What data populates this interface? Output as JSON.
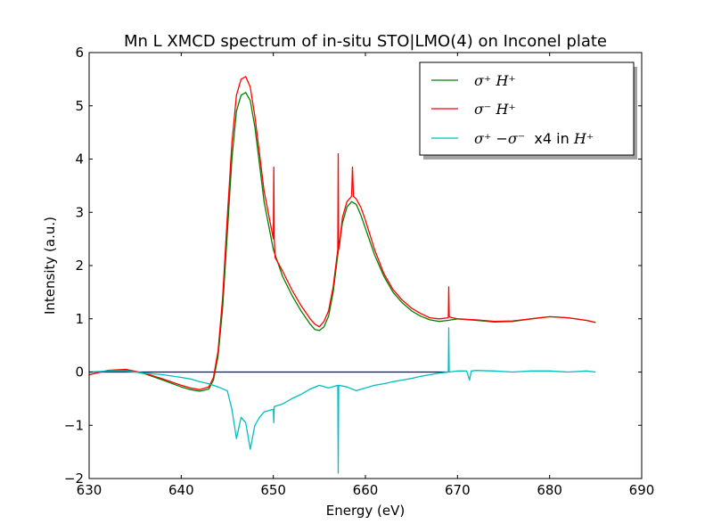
{
  "chart_data": {
    "type": "line",
    "title": "Mn L XMCD spectrum of in-situ STO|LMO(4) on Inconel plate",
    "xlabel": "Energy (eV)",
    "ylabel": "Intensity (a.u.)",
    "xlim": [
      630,
      690
    ],
    "ylim": [
      -2,
      6
    ],
    "xticks": [
      630,
      640,
      650,
      660,
      670,
      680,
      690
    ],
    "yticks": [
      -2,
      -1,
      0,
      1,
      2,
      3,
      4,
      5,
      6
    ],
    "xtick_labels": [
      "630",
      "640",
      "650",
      "660",
      "670",
      "680",
      "690"
    ],
    "ytick_labels": [
      "−2",
      "−1",
      "0",
      "1",
      "2",
      "3",
      "4",
      "5",
      "6"
    ],
    "grid": false,
    "legend_position": "top-right",
    "baseline": {
      "y": 0,
      "x_range": [
        630,
        669
      ],
      "color": "#0000bf"
    },
    "series": [
      {
        "name": "σ⁺ H⁺",
        "legend_parts": {
          "math": "σ⁺ H⁺",
          "extra": ""
        },
        "color": "#008000",
        "x": [
          630,
          632,
          634,
          636,
          638,
          640,
          641,
          642,
          643,
          643.5,
          644,
          644.5,
          645,
          645.5,
          646,
          646.5,
          647,
          647.5,
          648,
          648.5,
          649,
          650,
          651,
          652,
          653,
          654,
          654.5,
          655,
          655.5,
          656,
          656.5,
          657,
          657.5,
          658,
          658.5,
          659,
          659.5,
          660,
          661,
          662,
          663,
          664,
          665,
          666,
          667,
          668,
          669,
          670,
          672,
          674,
          676,
          678,
          680,
          682,
          684,
          685
        ],
        "y": [
          -0.05,
          0.03,
          0.04,
          -0.03,
          -0.15,
          -0.28,
          -0.33,
          -0.36,
          -0.32,
          -0.15,
          0.3,
          1.2,
          2.6,
          4.0,
          4.9,
          5.2,
          5.25,
          5.1,
          4.6,
          3.9,
          3.2,
          2.3,
          1.8,
          1.45,
          1.15,
          0.9,
          0.8,
          0.78,
          0.85,
          1.05,
          1.5,
          2.2,
          2.8,
          3.1,
          3.2,
          3.15,
          2.95,
          2.7,
          2.2,
          1.8,
          1.5,
          1.3,
          1.15,
          1.05,
          0.98,
          0.95,
          0.97,
          1.0,
          0.97,
          0.94,
          0.95,
          1.0,
          1.04,
          1.02,
          0.97,
          0.93
        ]
      },
      {
        "name": "σ⁻ H⁺",
        "legend_parts": {
          "math": "σ⁻  H⁺",
          "extra": ""
        },
        "color": "#ff0000",
        "x": [
          630,
          632,
          634,
          636,
          638,
          640,
          641,
          642,
          643,
          643.5,
          644,
          644.5,
          645,
          645.5,
          646,
          646.5,
          647,
          647.5,
          648,
          648.5,
          649,
          650,
          650.05,
          650.1,
          650.2,
          651,
          652,
          653,
          654,
          654.5,
          655,
          655.5,
          656,
          656.5,
          657,
          657.05,
          657.1,
          657.2,
          657.5,
          658,
          658.5,
          658.6,
          658.7,
          659,
          659.5,
          660,
          661,
          662,
          663,
          664,
          665,
          666,
          667,
          668,
          669,
          669.05,
          669.1,
          669.2,
          670,
          672,
          674,
          676,
          678,
          680,
          682,
          684,
          685
        ],
        "y": [
          -0.05,
          0.03,
          0.05,
          -0.02,
          -0.13,
          -0.25,
          -0.3,
          -0.33,
          -0.28,
          -0.1,
          0.4,
          1.4,
          2.9,
          4.3,
          5.2,
          5.5,
          5.55,
          5.35,
          4.8,
          4.1,
          3.4,
          2.5,
          3.85,
          2.5,
          2.15,
          1.9,
          1.55,
          1.25,
          1.0,
          0.9,
          0.85,
          0.95,
          1.15,
          1.6,
          2.3,
          4.1,
          2.3,
          2.4,
          2.9,
          3.2,
          3.3,
          3.85,
          3.3,
          3.25,
          3.1,
          2.85,
          2.3,
          1.85,
          1.55,
          1.35,
          1.2,
          1.1,
          1.02,
          1.0,
          1.02,
          1.6,
          1.05,
          1.03,
          1.0,
          0.98,
          0.95,
          0.96,
          1.0,
          1.04,
          1.02,
          0.97,
          0.93
        ]
      },
      {
        "name": "σ⁺−σ⁻ x4 in H⁺",
        "legend_parts": {
          "math": "σ⁺ −σ⁻",
          "extra": "  x4 in ",
          "math2": "H⁺"
        },
        "color": "#00bfbf",
        "x": [
          630,
          632,
          634,
          636,
          638,
          640,
          641,
          642,
          643,
          644,
          645,
          645.5,
          646,
          646.5,
          647,
          647.5,
          648,
          648.5,
          649,
          650,
          650.05,
          650.1,
          651,
          652,
          653,
          654,
          655,
          656,
          657,
          657.05,
          657.1,
          658,
          659,
          660,
          661,
          662,
          663,
          664,
          665,
          666,
          667,
          668,
          669,
          669.05,
          669.1,
          670,
          671,
          671.3,
          671.5,
          672,
          674,
          676,
          678,
          680,
          682,
          684,
          685
        ],
        "y": [
          0.0,
          0.02,
          0.02,
          -0.02,
          -0.05,
          -0.1,
          -0.13,
          -0.18,
          -0.22,
          -0.28,
          -0.35,
          -0.7,
          -1.25,
          -0.85,
          -0.95,
          -1.45,
          -1.0,
          -0.85,
          -0.75,
          -0.7,
          -0.95,
          -0.65,
          -0.6,
          -0.5,
          -0.42,
          -0.32,
          -0.25,
          -0.3,
          -0.25,
          -1.9,
          -0.25,
          -0.28,
          -0.35,
          -0.3,
          -0.25,
          -0.22,
          -0.18,
          -0.15,
          -0.12,
          -0.08,
          -0.05,
          -0.02,
          0.0,
          0.83,
          0.0,
          0.02,
          0.02,
          -0.15,
          0.02,
          0.03,
          0.02,
          0.0,
          0.02,
          0.02,
          0.0,
          0.02,
          0.0
        ]
      }
    ]
  }
}
